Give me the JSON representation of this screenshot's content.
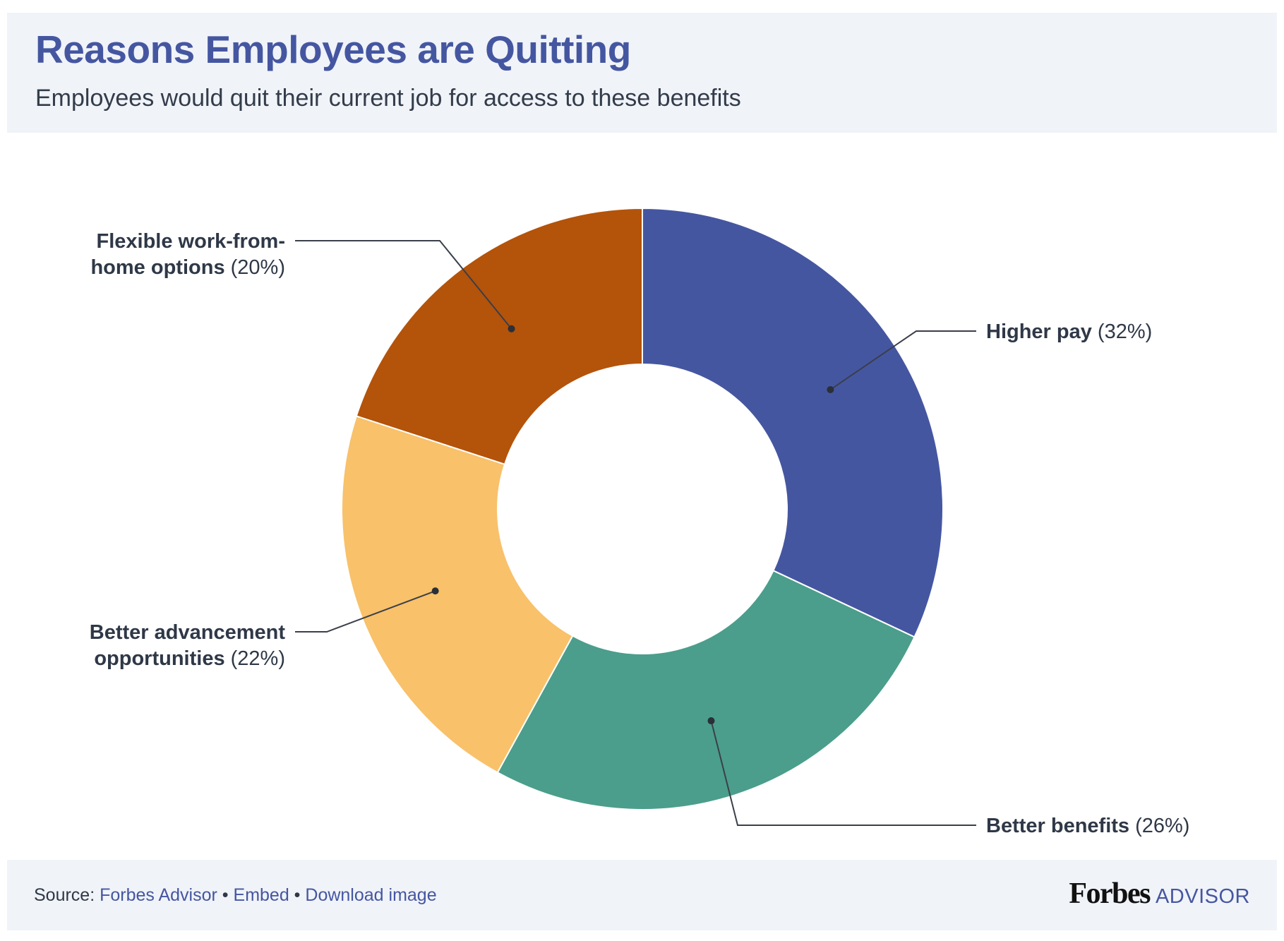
{
  "header": {
    "title": "Reasons Employees are Quitting",
    "subtitle": "Employees would quit their current job for access to these benefits"
  },
  "chart_data": {
    "type": "pie",
    "variant": "donut",
    "title": "Reasons Employees are Quitting",
    "subtitle": "Employees would quit their current job for access to these benefits",
    "unit": "%",
    "slices": [
      {
        "label": "Higher pay",
        "value": 32,
        "value_label": "(32%)",
        "label_lines": [
          "Higher pay"
        ],
        "color": "#4556a1"
      },
      {
        "label": "Better benefits",
        "value": 26,
        "value_label": "(26%)",
        "label_lines": [
          "Better benefits"
        ],
        "color": "#4b9e8b"
      },
      {
        "label": "Better advancement opportunities",
        "value": 22,
        "value_label": "(22%)",
        "label_lines": [
          "Better advancement",
          "opportunities"
        ],
        "color": "#f8c16a"
      },
      {
        "label": "Flexible work-from-home options",
        "value": 20,
        "value_label": "(20%)",
        "label_lines": [
          "Flexible work-from-",
          "home options"
        ],
        "color": "#b4530a"
      }
    ]
  },
  "footer": {
    "source_prefix": "Source: ",
    "source_link": "Forbes Advisor",
    "separator": " • ",
    "embed": "Embed",
    "download": "Download image",
    "brand": "Forbes",
    "brand_suffix": "ADVISOR"
  }
}
